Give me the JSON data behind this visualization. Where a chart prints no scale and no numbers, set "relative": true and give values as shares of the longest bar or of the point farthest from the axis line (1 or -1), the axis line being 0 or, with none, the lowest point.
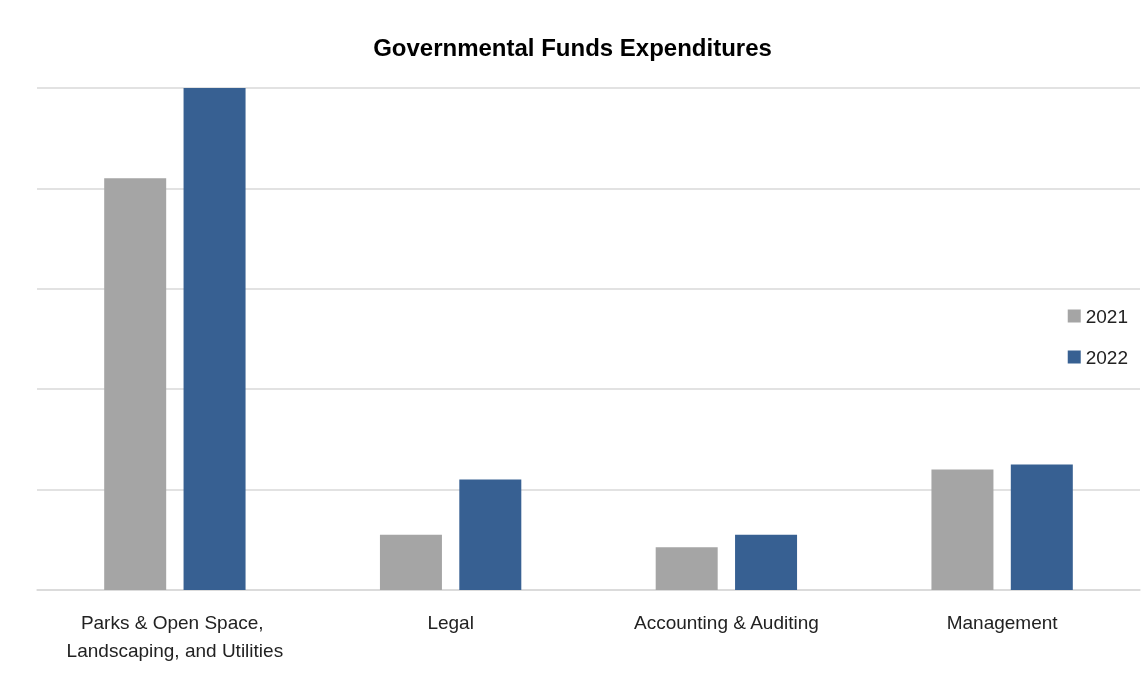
{
  "chart_data": {
    "type": "bar",
    "title": "Governmental Funds Expenditures",
    "relative": true,
    "grid": "y",
    "legend": "right",
    "categories": [
      "Parks & Open Space, Landscaping, and Utilities",
      "Legal",
      "Accounting & Auditing",
      "Management"
    ],
    "series": [
      {
        "name": "2021",
        "color": "#a5a5a5",
        "values": [
          0.82,
          0.11,
          0.085,
          0.24
        ]
      },
      {
        "name": "2022",
        "color": "#376092",
        "values": [
          1,
          0.22,
          0.11,
          0.25
        ]
      }
    ]
  }
}
